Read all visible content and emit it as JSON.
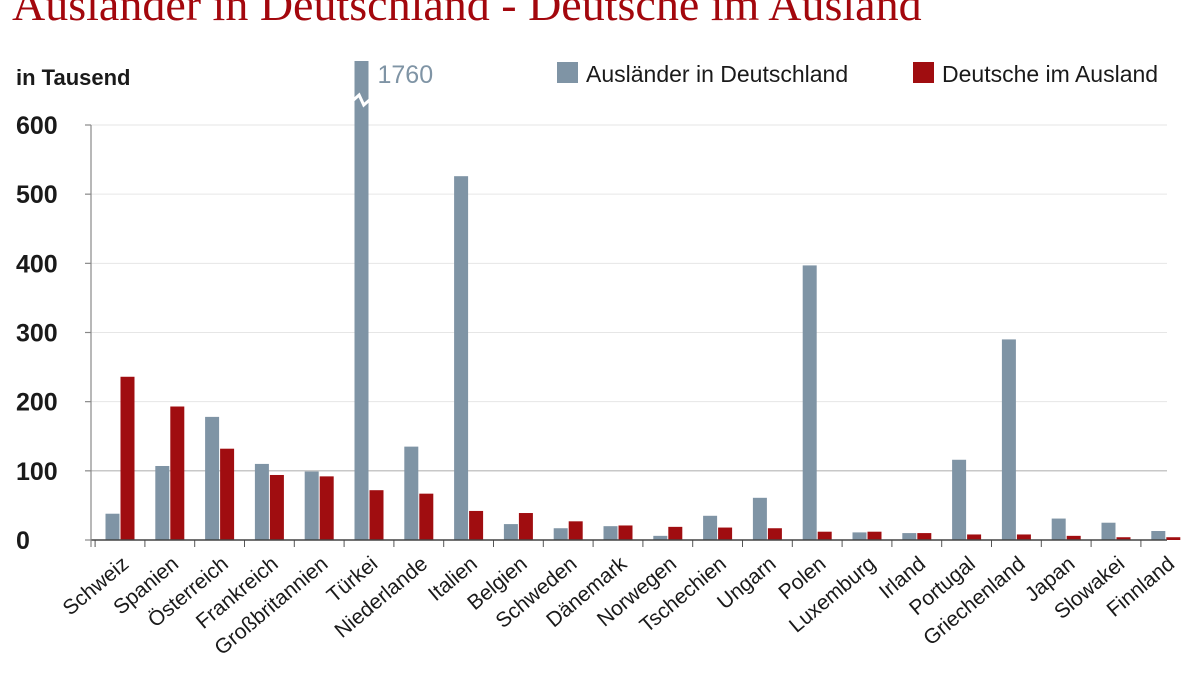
{
  "chart_data": {
    "type": "bar",
    "title": "Ausländer in Deutschland - Deutsche im Ausland",
    "unit_label": "in Tausend",
    "ylim": [
      0,
      600
    ],
    "yticks": [
      0,
      100,
      200,
      300,
      400,
      500,
      600
    ],
    "axis_break": true,
    "grid": true,
    "legend_position": "top-right",
    "categories": [
      "Schweiz",
      "Spanien",
      "Österreich",
      "Frankreich",
      "Großbritannien",
      "Türkei",
      "Niederlande",
      "Italien",
      "Belgien",
      "Schweden",
      "Dänemark",
      "Norwegen",
      "Tschechien",
      "Ungarn",
      "Polen",
      "Luxemburg",
      "Irland",
      "Portugal",
      "Griechenland",
      "Japan",
      "Slowakei",
      "Finnland"
    ],
    "series": [
      {
        "name": "Ausländer in Deutschland",
        "color": "#7f94a5",
        "values": [
          38,
          107,
          178,
          110,
          99,
          1760,
          135,
          526,
          23,
          17,
          20,
          6,
          35,
          61,
          397,
          11,
          10,
          116,
          290,
          31,
          25,
          13
        ]
      },
      {
        "name": "Deutsche im Ausland",
        "color": "#a00d10",
        "values": [
          236,
          193,
          132,
          94,
          92,
          72,
          67,
          42,
          39,
          27,
          21,
          19,
          18,
          17,
          12,
          12,
          10,
          8,
          8,
          6,
          4,
          4
        ]
      }
    ],
    "annotations": [
      {
        "category": "Türkei",
        "series": "Ausländer in Deutschland",
        "text": "1760"
      }
    ]
  }
}
